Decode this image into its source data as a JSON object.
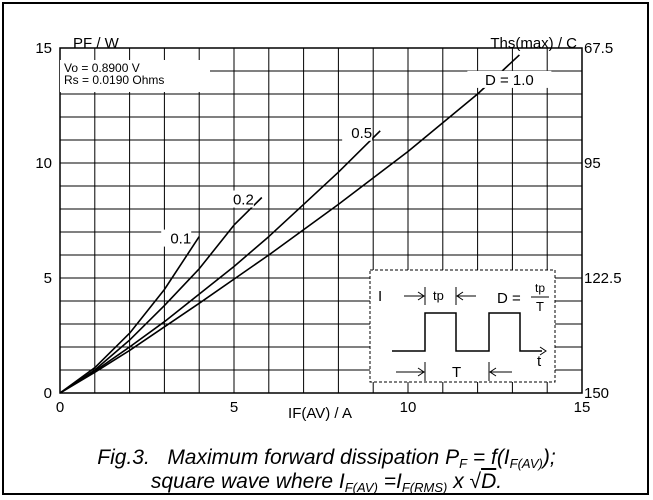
{
  "chart_data": {
    "type": "line",
    "ylabel_left": "PF / W",
    "ylabel_right": "Ths(max) / C",
    "xlabel": "IF(AV) / A",
    "xlim": [
      0,
      15
    ],
    "ylim": [
      0,
      15
    ],
    "x_ticks": [
      "0",
      "5",
      "10",
      "15"
    ],
    "y_ticks_left": [
      "0",
      "5",
      "10",
      "15"
    ],
    "y_ticks_right": [
      "150",
      "122.5",
      "95",
      "67.5"
    ],
    "grid": true,
    "params": [
      "Vo = 0.8900 V",
      "Rs = 0.0190 Ohms"
    ],
    "series": [
      {
        "name": "0.1",
        "x": [
          0,
          1,
          2,
          3,
          4
        ],
        "y": [
          0,
          1.1,
          2.6,
          4.5,
          6.8
        ]
      },
      {
        "name": "0.2",
        "x": [
          0,
          1,
          2,
          3,
          4,
          5,
          5.8
        ],
        "y": [
          0,
          1.0,
          2.3,
          3.8,
          5.4,
          7.3,
          8.5
        ]
      },
      {
        "name": "0.5",
        "x": [
          0,
          1,
          2,
          3,
          4,
          5,
          6,
          7,
          8,
          9.2
        ],
        "y": [
          0,
          0.95,
          2.0,
          3.1,
          4.3,
          5.5,
          6.8,
          8.2,
          9.6,
          11.4
        ]
      },
      {
        "name": "D = 1.0",
        "x": [
          0,
          1,
          2,
          4,
          6,
          8,
          10,
          12,
          13.2
        ],
        "y": [
          0,
          0.9,
          1.85,
          3.9,
          6.0,
          8.2,
          10.5,
          13.0,
          14.7
        ]
      }
    ],
    "inset": {
      "current_label": "I",
      "pulse_label": "tp",
      "period_label": "T",
      "time_label": "t",
      "duty_lhs": "D =",
      "duty_num": "tp",
      "duty_den": "T"
    },
    "caption": {
      "fig_label": "Fig.3.",
      "line1": "Maximum forward dissipation",
      "line2": "square wave where"
    }
  }
}
